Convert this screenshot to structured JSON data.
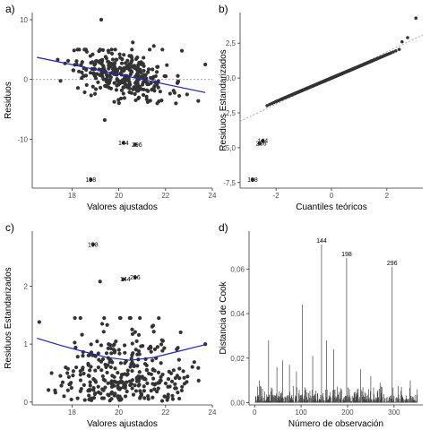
{
  "colors": {
    "points": "#333333",
    "smooth": "#2222bb",
    "reference": "#9a9a9a",
    "bar": "#444444",
    "axis": "#333333"
  },
  "chart_data": [
    {
      "id": "a",
      "panel_label": "a)",
      "type": "scatter",
      "xlabel": "Valores ajustados",
      "ylabel": "Residuos",
      "xlim": [
        16.3,
        24.0
      ],
      "ylim": [
        -18.2,
        11.2
      ],
      "xticks": [
        18,
        20,
        22,
        24
      ],
      "yticks": [
        {
          "v": 10,
          "label": "10"
        },
        {
          "v": 0,
          "label": "0"
        },
        {
          "v": -10,
          "label": "-10"
        }
      ],
      "hline": 0,
      "trend": {
        "x": [
          16.5,
          23.7
        ],
        "y": [
          3.7,
          -2.2
        ]
      },
      "outliers": [
        {
          "x": 19.25,
          "y": 10.0
        },
        {
          "x": 20.6,
          "y": 6.2
        },
        {
          "x": 21.5,
          "y": 5.6
        },
        {
          "x": 22.7,
          "y": 4.8
        },
        {
          "x": 23.7,
          "y": 2.5
        },
        {
          "x": 23.4,
          "y": -3.6
        },
        {
          "x": 19.4,
          "y": -6.8
        }
      ],
      "labeled_points": [
        {
          "label": "144",
          "x": 20.2,
          "y": -10.6
        },
        {
          "label": "296",
          "x": 20.7,
          "y": -10.9
        },
        {
          "label": "198",
          "x": 18.8,
          "y": -16.8
        }
      ]
    },
    {
      "id": "b",
      "panel_label": "b)",
      "type": "scatter",
      "xlabel": "Cuantiles teóricos",
      "ylabel": "Residuos Estandarizados",
      "xlim": [
        -3.3,
        3.3
      ],
      "ylim": [
        -7.9,
        4.7
      ],
      "xticks": [
        -2,
        0,
        2
      ],
      "yticks": [
        {
          "v": 2.5,
          "label": "2,5"
        },
        {
          "v": 0,
          "label": "0,0"
        },
        {
          "v": -2.5,
          "label": "-2,5"
        },
        {
          "v": -5,
          "label": "-5,0"
        },
        {
          "v": -7.5,
          "label": "-7,5"
        }
      ],
      "reference_line": {
        "x": [
          -3.3,
          3.3
        ],
        "y": [
          -3.1,
          3.1
        ]
      },
      "qq_n": 350,
      "qq_slope": 0.84,
      "upper_tail": [
        {
          "x": 2.55,
          "y": 2.6
        },
        {
          "x": 2.75,
          "y": 2.9
        },
        {
          "x": 3.05,
          "y": 4.3
        }
      ],
      "labeled_points": [
        {
          "label": "144",
          "x": -2.48,
          "y": -4.5
        },
        {
          "label": "296",
          "x": -2.6,
          "y": -4.7
        },
        {
          "label": "198",
          "x": -2.85,
          "y": -7.3
        }
      ]
    },
    {
      "id": "c",
      "panel_label": "c)",
      "type": "scatter",
      "xlabel": "Valores ajustados",
      "ylabel": "Residuos Estandarizados",
      "xlim": [
        16.3,
        24.0
      ],
      "ylim": [
        -0.05,
        2.95
      ],
      "xticks": [
        18,
        20,
        22,
        24
      ],
      "yticks": [
        {
          "v": 0,
          "label": "0"
        },
        {
          "v": 1,
          "label": "1"
        },
        {
          "v": 2,
          "label": "2"
        }
      ],
      "trend": {
        "x": [
          16.5,
          17.5,
          18.5,
          19.5,
          20.5,
          21.5,
          22.5,
          23.7
        ],
        "y": [
          1.1,
          0.98,
          0.87,
          0.77,
          0.72,
          0.77,
          0.87,
          0.99
        ]
      },
      "outliers": [
        {
          "x": 16.6,
          "y": 1.38
        },
        {
          "x": 23.7,
          "y": 1.0
        },
        {
          "x": 19.2,
          "y": 2.08
        }
      ],
      "labeled_points": [
        {
          "label": "198",
          "x": 18.9,
          "y": 2.72
        },
        {
          "label": "144",
          "x": 20.2,
          "y": 2.12
        },
        {
          "label": "296",
          "x": 20.7,
          "y": 2.15
        }
      ]
    },
    {
      "id": "d",
      "panel_label": "d)",
      "type": "bar",
      "xlabel": "Número de observación",
      "ylabel": "Distancia de Cook",
      "xlim": [
        -12,
        362
      ],
      "ylim": [
        -0.001,
        0.077
      ],
      "xticks": [
        {
          "v": 0,
          "label": "0"
        },
        {
          "v": 100,
          "label": "100"
        },
        {
          "v": 200,
          "label": "200"
        },
        {
          "v": 300,
          "label": "300"
        }
      ],
      "yticks": [
        {
          "v": 0,
          "label": "0,00"
        },
        {
          "v": 0.02,
          "label": "0,02"
        },
        {
          "v": 0.04,
          "label": "0,04"
        },
        {
          "v": 0.06,
          "label": "0,06"
        }
      ],
      "n": 350,
      "peaks": [
        {
          "x": 144,
          "y": 0.071
        },
        {
          "x": 198,
          "y": 0.065
        },
        {
          "x": 296,
          "y": 0.061
        },
        {
          "x": 103,
          "y": 0.044
        },
        {
          "x": 155,
          "y": 0.028
        },
        {
          "x": 30,
          "y": 0.028
        },
        {
          "x": 170,
          "y": 0.024
        },
        {
          "x": 125,
          "y": 0.021
        },
        {
          "x": 60,
          "y": 0.019
        },
        {
          "x": 75,
          "y": 0.017
        },
        {
          "x": 48,
          "y": 0.016
        },
        {
          "x": 228,
          "y": 0.015
        },
        {
          "x": 90,
          "y": 0.014
        },
        {
          "x": 250,
          "y": 0.012
        },
        {
          "x": 10,
          "y": 0.01
        },
        {
          "x": 335,
          "y": 0.01
        },
        {
          "x": 270,
          "y": 0.009
        }
      ],
      "labeled_points": [
        {
          "label": "144",
          "x": 144,
          "y": 0.071
        },
        {
          "label": "198",
          "x": 198,
          "y": 0.065
        },
        {
          "label": "296",
          "x": 296,
          "y": 0.061
        }
      ]
    }
  ]
}
